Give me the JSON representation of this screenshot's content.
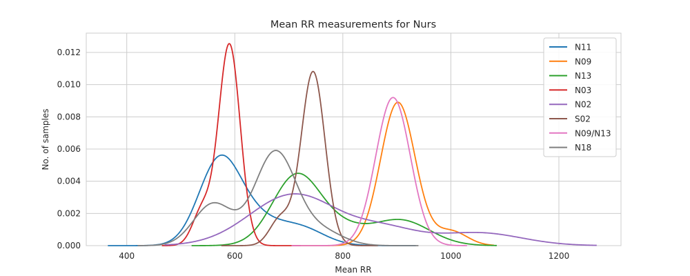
{
  "chart_data": {
    "type": "line",
    "title": "Mean RR measurements for Nurs",
    "xlabel": "Mean RR",
    "ylabel": "No. of samples",
    "xlim": [
      325,
      1315
    ],
    "ylim": [
      0,
      0.0132
    ],
    "xticks": [
      400,
      600,
      800,
      1000,
      1200
    ],
    "yticks": [
      0.0,
      0.002,
      0.004,
      0.006,
      0.008,
      0.01,
      0.012
    ],
    "ytick_labels": [
      "0.000",
      "0.002",
      "0.004",
      "0.006",
      "0.008",
      "0.010",
      "0.012"
    ],
    "grid": true,
    "legend_position": "top-right",
    "series": [
      {
        "name": "N11",
        "color": "#1f77b4",
        "x_range": [
          365,
          935
        ],
        "components": [
          {
            "w": 0.0049,
            "mu": 570,
            "sigma": 38
          },
          {
            "w": 0.0016,
            "mu": 630,
            "sigma": 45
          },
          {
            "w": 0.0011,
            "mu": 720,
            "sigma": 45
          }
        ]
      },
      {
        "name": "N09",
        "color": "#ff7f0e",
        "x_range": [
          705,
          1080
        ],
        "components": [
          {
            "w": 0.0089,
            "mu": 902,
            "sigma": 32
          },
          {
            "w": 0.0009,
            "mu": 1000,
            "sigma": 30
          }
        ]
      },
      {
        "name": "N13",
        "color": "#2ca02c",
        "x_range": [
          520,
          1085
        ],
        "components": [
          {
            "w": 0.0044,
            "mu": 715,
            "sigma": 45
          },
          {
            "w": 0.0008,
            "mu": 800,
            "sigma": 40
          },
          {
            "w": 0.0016,
            "mu": 905,
            "sigma": 55
          }
        ]
      },
      {
        "name": "N03",
        "color": "#d62728",
        "x_range": [
          465,
          722
        ],
        "components": [
          {
            "w": 0.0125,
            "mu": 590,
            "sigma": 20
          },
          {
            "w": 0.0022,
            "mu": 540,
            "sigma": 18
          }
        ]
      },
      {
        "name": "N02",
        "color": "#9467bd",
        "x_range": [
          470,
          1270
        ],
        "components": [
          {
            "w": 0.0032,
            "mu": 710,
            "sigma": 82
          },
          {
            "w": 0.0009,
            "mu": 880,
            "sigma": 60
          },
          {
            "w": 0.0008,
            "mu": 1050,
            "sigma": 80
          }
        ]
      },
      {
        "name": "S02",
        "color": "#8c564b",
        "x_range": [
          575,
          865
        ],
        "components": [
          {
            "w": 0.0108,
            "mu": 745,
            "sigma": 22
          },
          {
            "w": 0.0017,
            "mu": 685,
            "sigma": 20
          }
        ]
      },
      {
        "name": "N09/N13",
        "color": "#e377c2",
        "x_range": [
          705,
          1030
        ],
        "components": [
          {
            "w": 0.0092,
            "mu": 893,
            "sigma": 32
          }
        ]
      },
      {
        "name": "N18",
        "color": "#7f7f7f",
        "x_range": [
          420,
          940
        ],
        "components": [
          {
            "w": 0.0026,
            "mu": 560,
            "sigma": 36
          },
          {
            "w": 0.0058,
            "mu": 675,
            "sigma": 38
          },
          {
            "w": 0.0009,
            "mu": 760,
            "sigma": 40
          }
        ]
      }
    ]
  }
}
